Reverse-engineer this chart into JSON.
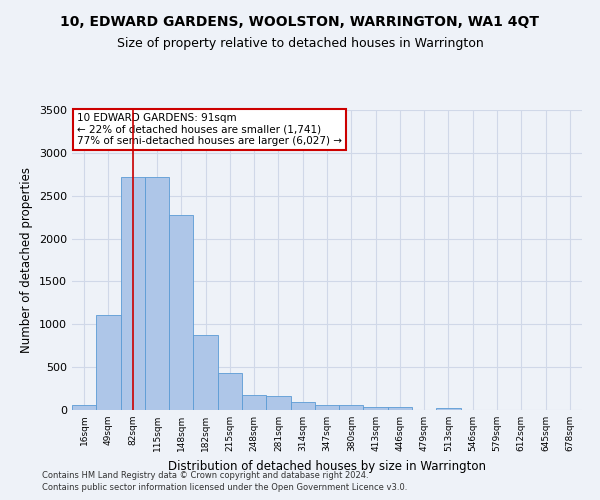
{
  "title": "10, EDWARD GARDENS, WOOLSTON, WARRINGTON, WA1 4QT",
  "subtitle": "Size of property relative to detached houses in Warrington",
  "xlabel": "Distribution of detached houses by size in Warrington",
  "ylabel": "Number of detached properties",
  "categories": [
    "16sqm",
    "49sqm",
    "82sqm",
    "115sqm",
    "148sqm",
    "182sqm",
    "215sqm",
    "248sqm",
    "281sqm",
    "314sqm",
    "347sqm",
    "380sqm",
    "413sqm",
    "446sqm",
    "479sqm",
    "513sqm",
    "546sqm",
    "579sqm",
    "612sqm",
    "645sqm",
    "678sqm"
  ],
  "values": [
    55,
    1110,
    2720,
    2720,
    2280,
    870,
    430,
    170,
    165,
    90,
    60,
    55,
    40,
    30,
    0,
    20,
    0,
    0,
    0,
    0,
    0
  ],
  "bar_color": "#aec6e8",
  "bar_edge_color": "#5b9bd5",
  "vline_x": 2.0,
  "annotation_line1": "10 EDWARD GARDENS: 91sqm",
  "annotation_line2": "← 22% of detached houses are smaller (1,741)",
  "annotation_line3": "77% of semi-detached houses are larger (6,027) →",
  "annotation_box_color": "#ffffff",
  "annotation_box_edgecolor": "#cc0000",
  "vline_color": "#cc0000",
  "ylim": [
    0,
    3500
  ],
  "yticks": [
    0,
    500,
    1000,
    1500,
    2000,
    2500,
    3000,
    3500
  ],
  "grid_color": "#d0d8e8",
  "bg_color": "#eef2f8",
  "title_fontsize": 10,
  "subtitle_fontsize": 9,
  "footer1": "Contains HM Land Registry data © Crown copyright and database right 2024.",
  "footer2": "Contains public sector information licensed under the Open Government Licence v3.0."
}
